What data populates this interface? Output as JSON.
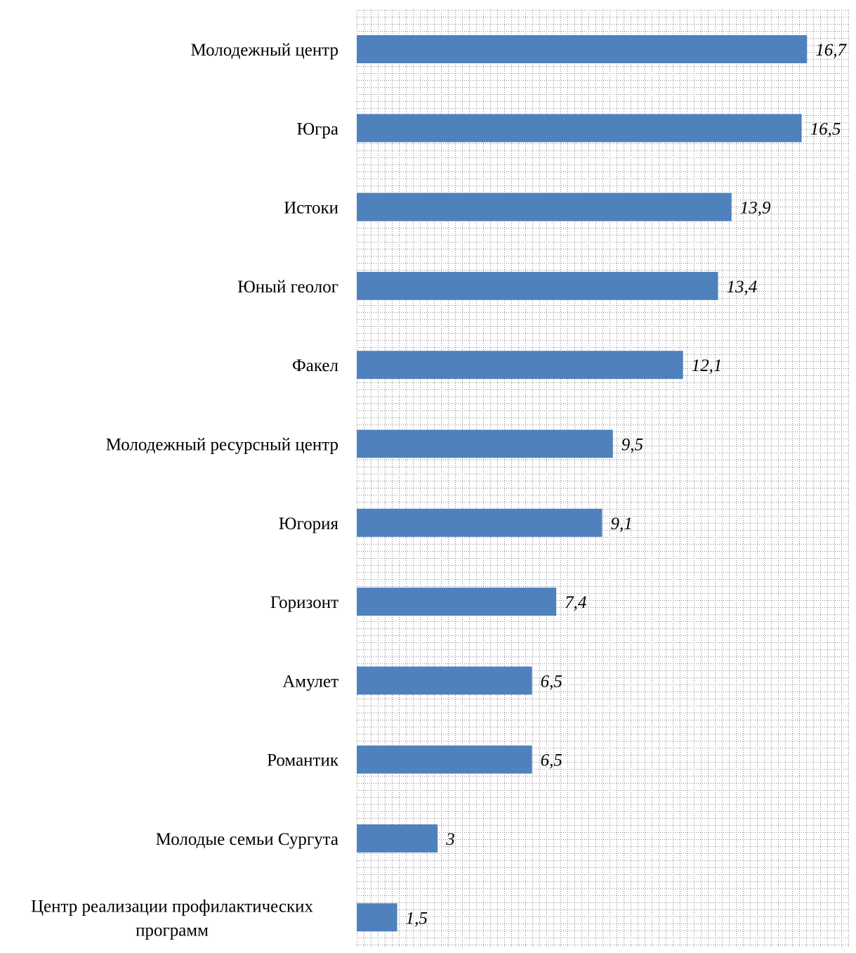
{
  "chart_data": {
    "type": "bar",
    "orientation": "horizontal",
    "categories": [
      "Молодежный центр",
      "Югра",
      "Истоки",
      "Юный геолог",
      "Факел",
      "Молодежный ресурсный центр",
      "Югория",
      "Горизонт",
      "Амулет",
      "Романтик",
      "Молодые семьи Сургута",
      "Центр реализации профилактических программ"
    ],
    "category_lines": [
      [
        "Молодежный центр"
      ],
      [
        "Югра"
      ],
      [
        "Истоки"
      ],
      [
        "Юный геолог"
      ],
      [
        "Факел"
      ],
      [
        "Молодежный ресурсный центр"
      ],
      [
        "Югория"
      ],
      [
        "Горизонт"
      ],
      [
        "Амулет"
      ],
      [
        "Романтик"
      ],
      [
        "Молодые семьи Сургута"
      ],
      [
        "Центр реализации профилактических",
        "программ"
      ]
    ],
    "values": [
      16.7,
      16.5,
      13.9,
      13.4,
      12.1,
      9.5,
      9.1,
      7.4,
      6.5,
      6.5,
      3,
      1.5
    ],
    "value_labels": [
      "16,7",
      "16,5",
      "13,9",
      "13,4",
      "12,1",
      "9,5",
      "9,1",
      "7,4",
      "6,5",
      "6,5",
      "3",
      "1,5"
    ],
    "title": "",
    "xlabel": "",
    "ylabel": "",
    "grid": true,
    "colors": {
      "bar": "#4f81bd",
      "grid": "#8c8c8c"
    }
  }
}
